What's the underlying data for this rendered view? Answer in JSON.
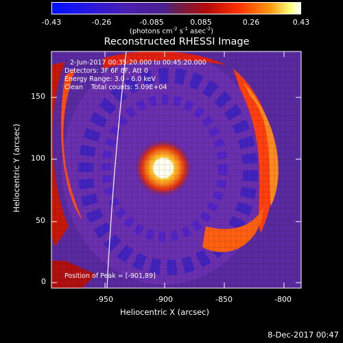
{
  "colorbar": {
    "ticks": [
      "-0.43",
      "-0.26",
      "-0.085",
      "0.085",
      "0.26",
      "0.43"
    ],
    "units_prefix": "(photons cm",
    "units_exp1": "-2",
    "units_mid1": " s",
    "units_exp2": "-1",
    "units_mid2": " asec",
    "units_exp3": "-2",
    "units_suffix": ")"
  },
  "title": "Reconstructed RHESSI Image",
  "info": {
    "time_range": "2-Jun-2017 00:35:20.000 to 00:45:20.000",
    "detectors": "Detectors: 3F 6F 8F, Att 0",
    "energy": "Energy Range: 3.0 - 6.0 keV",
    "clean": "Clean    Total counts: 5.09E+04",
    "peak": "Position of Peak = [-901,89]"
  },
  "axes": {
    "xlabel": "Heliocentric X (arcsec)",
    "ylabel": "Heliocentric Y (arcsec)",
    "xticks": [
      "-950",
      "-900",
      "-850",
      "-800"
    ],
    "yticks": [
      "0",
      "50",
      "100",
      "150"
    ]
  },
  "timestamp": "8-Dec-2017 00:47",
  "colors": {
    "background": "#000000",
    "low": "#1a10ff",
    "mid": "#6a2ea8",
    "high": "#ff3000",
    "peak": "#ffffd0"
  }
}
